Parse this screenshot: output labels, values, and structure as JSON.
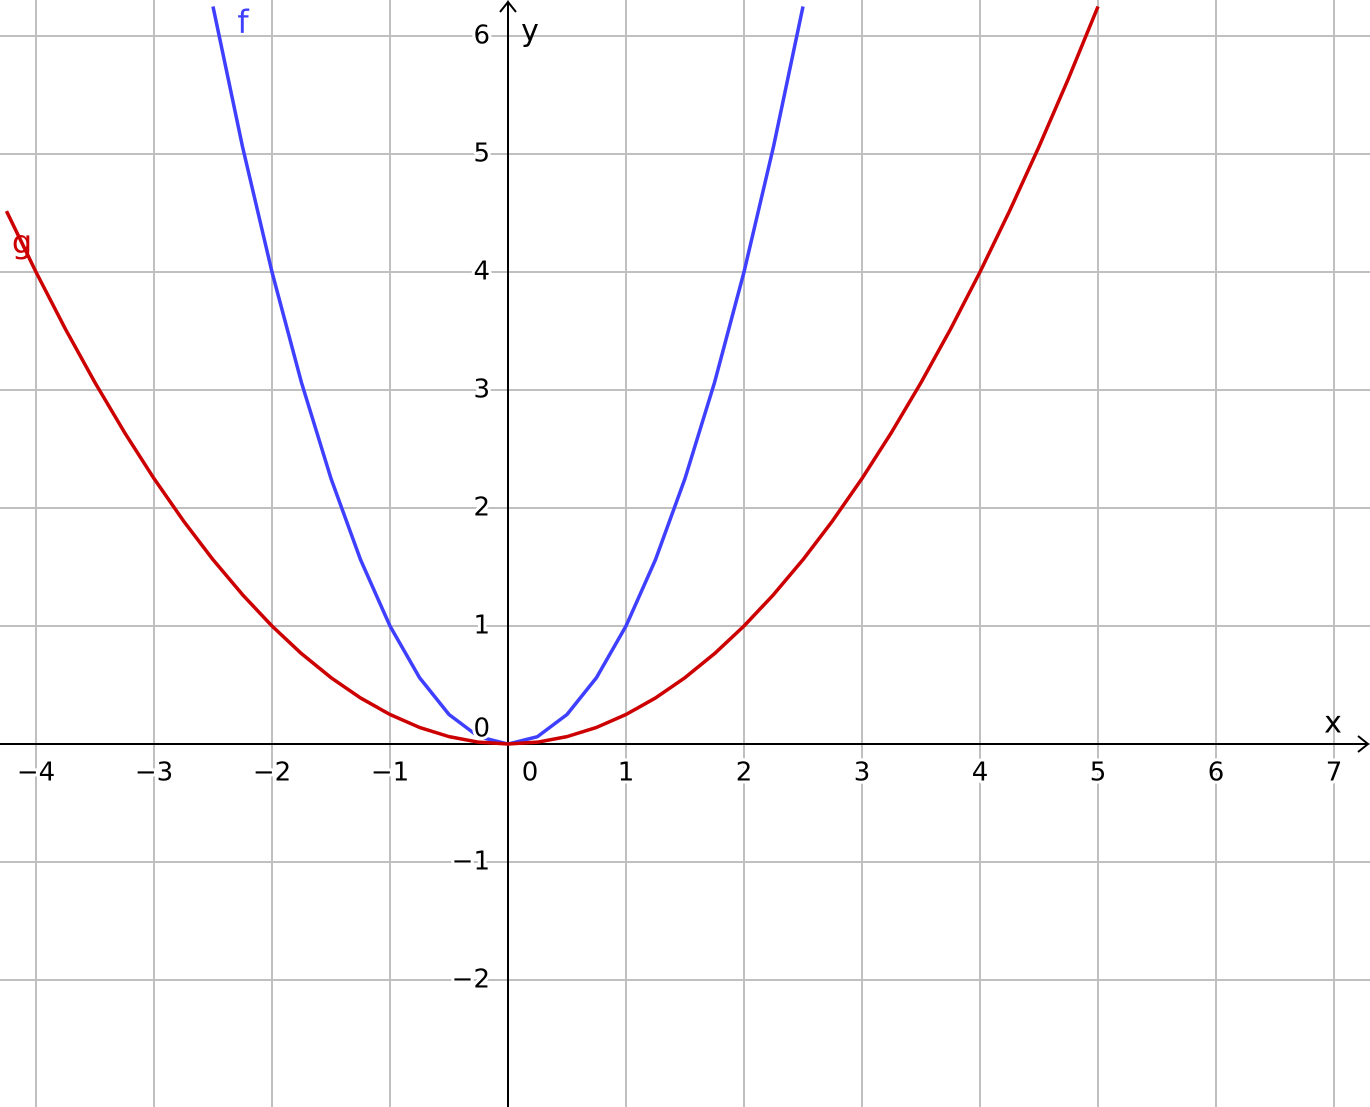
{
  "chart_data": {
    "type": "line",
    "xlabel": "x",
    "ylabel": "y",
    "xlim": [
      -4.305,
      7.305
    ],
    "ylim": [
      -3.076,
      6.305
    ],
    "xticks": [
      {
        "value": -4,
        "label": "−4"
      },
      {
        "value": -3,
        "label": "−3"
      },
      {
        "value": -2,
        "label": "−2"
      },
      {
        "value": -1,
        "label": "−1"
      },
      0,
      1,
      2,
      3,
      4,
      5,
      6,
      7
    ],
    "yticks": [
      {
        "value": -2,
        "label": "−2"
      },
      {
        "value": -1,
        "label": "−1"
      },
      0,
      1,
      2,
      3,
      4,
      5,
      6
    ],
    "grid": true,
    "series": [
      {
        "name": "f",
        "color": "#3f3fff",
        "x": [
          -2.5,
          -2.25,
          -2,
          -1.75,
          -1.5,
          -1.25,
          -1,
          -0.75,
          -0.5,
          -0.25,
          0,
          0.25,
          0.5,
          0.75,
          1,
          1.25,
          1.5,
          1.75,
          2,
          2.25,
          2.5
        ],
        "values": [
          6.25,
          5.0625,
          4,
          3.0625,
          2.25,
          1.5625,
          1,
          0.5625,
          0.25,
          0.0625,
          0,
          0.0625,
          0.25,
          0.5625,
          1,
          1.5625,
          2.25,
          3.0625,
          4,
          5.0625,
          6.25
        ]
      },
      {
        "name": "g",
        "color": "#cc0000",
        "x": [
          -4.25,
          -4,
          -3.75,
          -3.5,
          -3.25,
          -3,
          -2.75,
          -2.5,
          -2.25,
          -2,
          -1.75,
          -1.5,
          -1.25,
          -1,
          -0.75,
          -0.5,
          -0.25,
          0,
          0.25,
          0.5,
          0.75,
          1,
          1.25,
          1.5,
          1.75,
          2,
          2.25,
          2.5,
          2.75,
          3,
          3.25,
          3.5,
          3.75,
          4,
          4.25,
          4.5,
          4.75,
          5
        ],
        "values": [
          4.515625,
          4,
          3.515625,
          3.0625,
          2.640625,
          2.25,
          1.890625,
          1.5625,
          1.265625,
          1,
          0.765625,
          0.5625,
          0.390625,
          0.25,
          0.140625,
          0.0625,
          0.015625,
          0,
          0.015625,
          0.0625,
          0.140625,
          0.25,
          0.390625,
          0.5625,
          0.765625,
          1,
          1.265625,
          1.5625,
          1.890625,
          2.25,
          2.640625,
          3.0625,
          3.515625,
          4,
          4.515625,
          5.0625,
          5.640625,
          6.25
        ]
      }
    ]
  }
}
